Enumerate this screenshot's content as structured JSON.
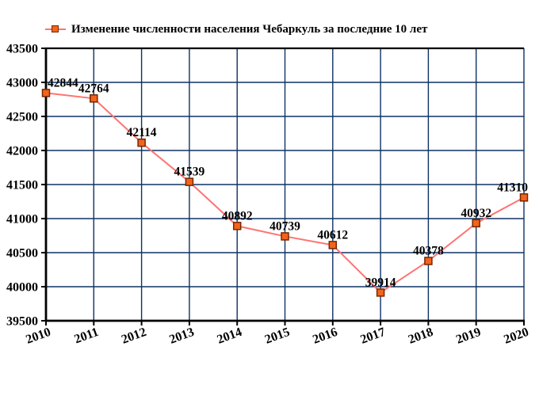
{
  "chart_data": {
    "type": "line",
    "title": "Изменение численности населения Чебаркуль за последние 10 лет",
    "legend_position": "top-left",
    "categories": [
      "2010",
      "2011",
      "2012",
      "2013",
      "2014",
      "2015",
      "2016",
      "2017",
      "2018",
      "2019",
      "2020"
    ],
    "series": [
      {
        "name": "Изменение численности населения Чебаркуль за последние 10 лет",
        "values": [
          42844,
          42764,
          42114,
          41539,
          40892,
          40739,
          40612,
          39914,
          40378,
          40932,
          41310
        ]
      }
    ],
    "xlabel": "",
    "ylabel": "",
    "ylim": [
      39500,
      43500
    ],
    "yticks": [
      39500,
      40000,
      40500,
      41000,
      41500,
      42000,
      42500,
      43000,
      43500
    ],
    "grid": true,
    "colors": {
      "background": "#FFFFFF",
      "line": "#FF7373",
      "marker_fill": "#F4631C",
      "marker_border": "#742800",
      "grid": "#0E3263",
      "axis": "#000000",
      "text": "#000000"
    }
  }
}
